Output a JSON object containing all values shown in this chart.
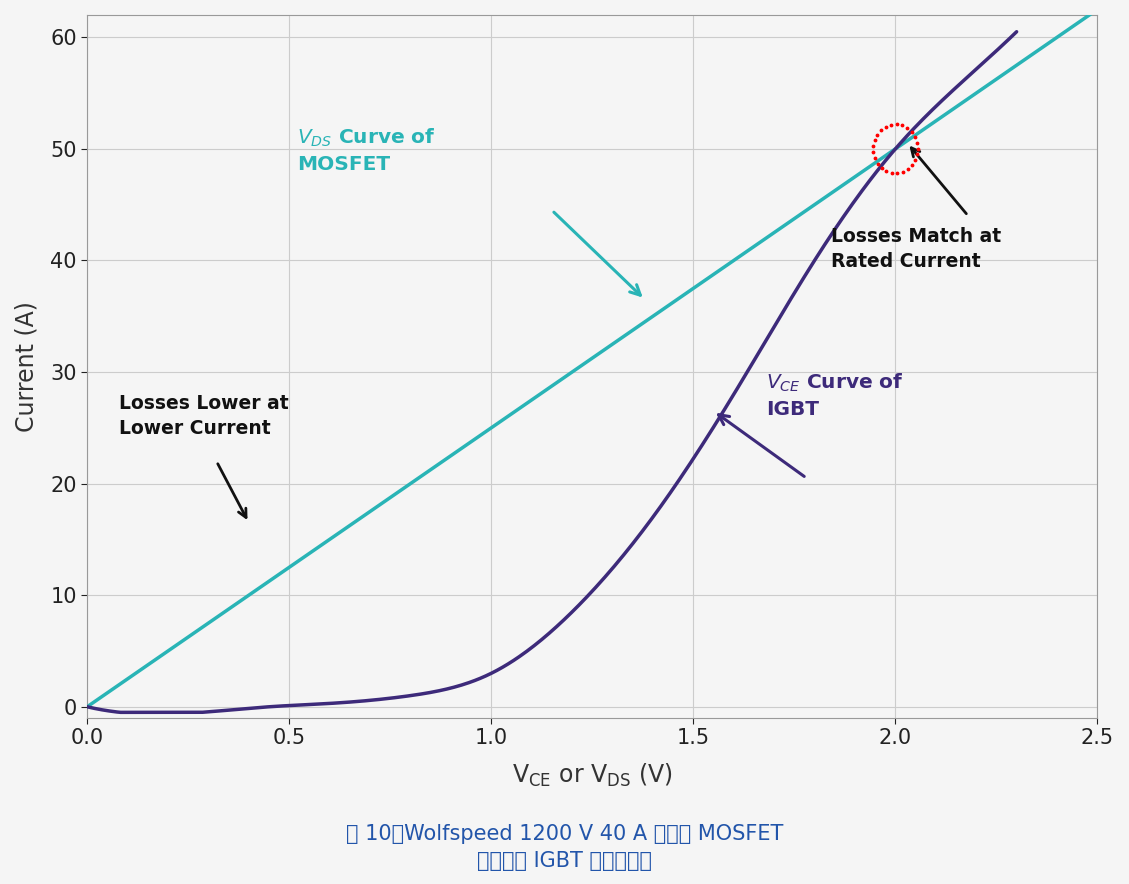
{
  "ylabel": "Current (A)",
  "xlim": [
    0,
    2.5
  ],
  "ylim": [
    -1,
    60
  ],
  "xticks": [
    0.0,
    0.5,
    1.0,
    1.5,
    2.0,
    2.5
  ],
  "yticks": [
    0,
    10,
    20,
    30,
    40,
    50,
    60
  ],
  "mosfet_color": "#29b4b6",
  "igbt_color": "#3d2a7a",
  "background_color": "#f5f5f5",
  "grid_color": "#cccccc",
  "intersection_color": "#ff0000",
  "caption_line1": "图 10：Wolfspeed 1200 V 40 A 碳化硅 MOSFET",
  "caption_line2": "与同类别 IGBT 的导通损耗",
  "caption_color": "#2255aa"
}
